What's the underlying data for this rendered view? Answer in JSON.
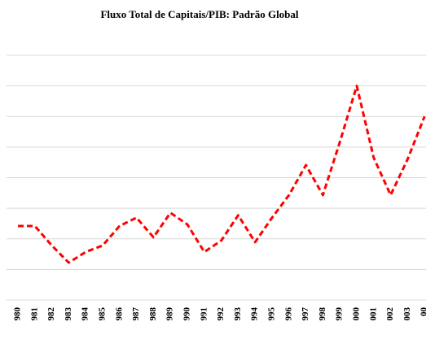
{
  "chart_data": {
    "type": "line",
    "title": "Fluxo Total de Capitais/PIB: Padrão Global",
    "categories": [
      "980",
      "981",
      "982",
      "983",
      "984",
      "985",
      "986",
      "987",
      "988",
      "989",
      "990",
      "991",
      "992",
      "993",
      "994",
      "995",
      "996",
      "997",
      "998",
      "999",
      "000",
      "001",
      "002",
      "003",
      "00"
    ],
    "series": [
      {
        "name": "Fluxo Total de Capitais/PIB",
        "color": "#ff0000",
        "values": [
          2.42,
          2.42,
          1.78,
          1.22,
          1.57,
          1.78,
          2.42,
          2.69,
          2.05,
          2.85,
          2.47,
          1.57,
          1.94,
          2.77,
          1.89,
          2.69,
          3.43,
          4.41,
          3.43,
          5.16,
          7.0,
          4.65,
          3.43,
          4.6,
          6.0
        ]
      }
    ],
    "ylim": [
      0,
      8
    ],
    "yticks": [
      0,
      1,
      2,
      3,
      4,
      5,
      6,
      7,
      8
    ],
    "grid": true
  }
}
